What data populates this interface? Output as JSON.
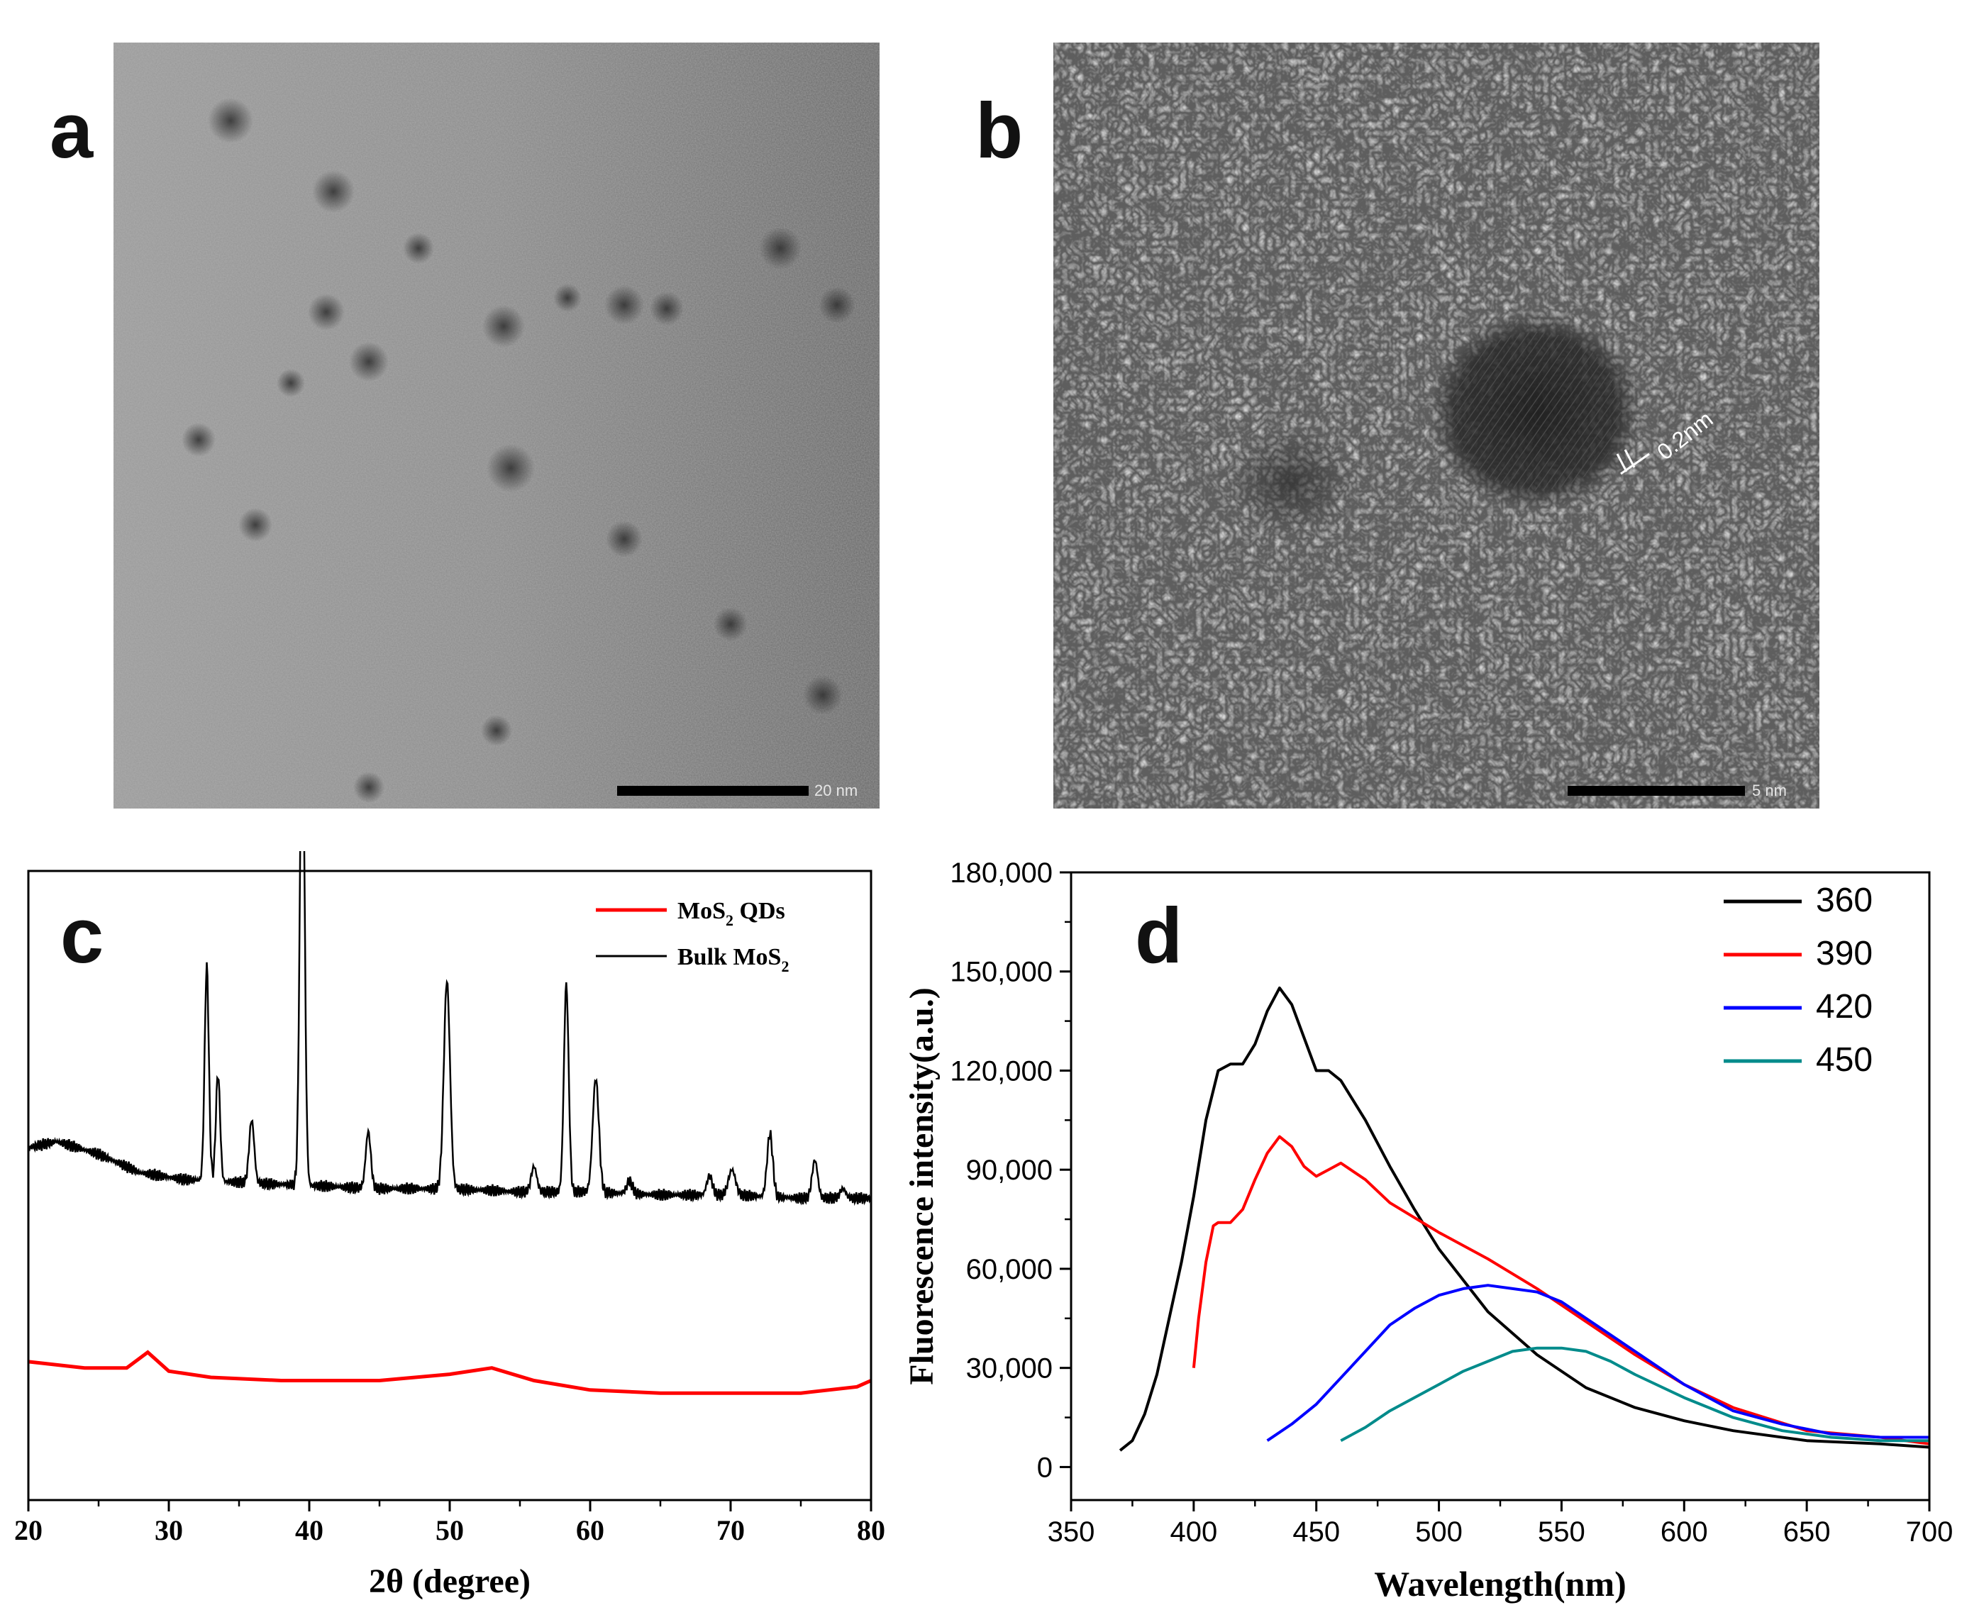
{
  "panels": {
    "a": {
      "letter": "a",
      "scale_label": "20 nm"
    },
    "b": {
      "letter": "b",
      "scale_label": "5 nm",
      "lattice_label": "0.2nm"
    },
    "c": {
      "letter": "c"
    },
    "d": {
      "letter": "d"
    }
  },
  "chart_data": [
    {
      "panel": "c",
      "type": "line",
      "xlabel": "2θ (degree)",
      "ylabel": "",
      "xlim": [
        20,
        80
      ],
      "xticks": [
        20,
        30,
        40,
        50,
        60,
        70,
        80
      ],
      "y_ticks_shown": false,
      "legend_position": "top-right",
      "series": [
        {
          "name": "MoS₂ QDs",
          "legend_main": "MoS",
          "legend_sub": "2",
          "legend_tail": " QDs",
          "color": "#ff0000",
          "x": [
            20,
            24,
            27,
            28.5,
            30,
            33,
            38,
            45,
            50,
            53,
            56,
            60,
            65,
            70,
            75,
            79,
            80
          ],
          "y": [
            0.22,
            0.21,
            0.21,
            0.235,
            0.205,
            0.195,
            0.19,
            0.19,
            0.2,
            0.21,
            0.19,
            0.175,
            0.17,
            0.17,
            0.17,
            0.18,
            0.19
          ]
        },
        {
          "name": "Bulk MoS₂",
          "legend_main": "Bulk MoS",
          "legend_sub": "2",
          "legend_tail": "",
          "color": "#000000",
          "baseline_x": [
            20,
            22,
            25,
            28,
            31,
            35,
            40,
            45,
            50,
            55,
            60,
            65,
            70,
            75,
            80
          ],
          "baseline_y": [
            0.56,
            0.57,
            0.55,
            0.52,
            0.51,
            0.505,
            0.5,
            0.495,
            0.495,
            0.49,
            0.49,
            0.485,
            0.485,
            0.48,
            0.48
          ],
          "peaks": [
            {
              "x": 32.7,
              "h": 0.34,
              "w": 0.15
            },
            {
              "x": 33.5,
              "h": 0.17,
              "w": 0.15
            },
            {
              "x": 35.9,
              "h": 0.1,
              "w": 0.18
            },
            {
              "x": 39.5,
              "h": 0.76,
              "w": 0.17
            },
            {
              "x": 44.2,
              "h": 0.09,
              "w": 0.18
            },
            {
              "x": 49.8,
              "h": 0.33,
              "w": 0.22
            },
            {
              "x": 56.0,
              "h": 0.04,
              "w": 0.2
            },
            {
              "x": 58.3,
              "h": 0.33,
              "w": 0.17
            },
            {
              "x": 60.4,
              "h": 0.18,
              "w": 0.22
            },
            {
              "x": 62.8,
              "h": 0.02,
              "w": 0.2
            },
            {
              "x": 68.5,
              "h": 0.03,
              "w": 0.2
            },
            {
              "x": 70.1,
              "h": 0.04,
              "w": 0.25
            },
            {
              "x": 72.8,
              "h": 0.1,
              "w": 0.2
            },
            {
              "x": 76.0,
              "h": 0.06,
              "w": 0.2
            },
            {
              "x": 78.0,
              "h": 0.015,
              "w": 0.2
            }
          ]
        }
      ]
    },
    {
      "panel": "d",
      "type": "line",
      "xlabel": "Wavelength(nm)",
      "ylabel": "Fluorescence intensity(a.u.)",
      "xlim": [
        350,
        700
      ],
      "ylim": [
        -10000,
        180000
      ],
      "xticks": [
        350,
        400,
        450,
        500,
        550,
        600,
        650,
        700
      ],
      "yticks": [
        0,
        30000,
        60000,
        90000,
        120000,
        150000,
        180000
      ],
      "ytick_labels": [
        "0",
        "30,000",
        "60,000",
        "90,000",
        "120,000",
        "150,000",
        "180,000"
      ],
      "legend_position": "top-right",
      "series": [
        {
          "name": "360",
          "color": "#000000",
          "x": [
            370,
            375,
            380,
            385,
            390,
            395,
            400,
            405,
            410,
            415,
            420,
            425,
            430,
            435,
            440,
            445,
            450,
            455,
            460,
            470,
            480,
            490,
            500,
            520,
            540,
            560,
            580,
            600,
            620,
            650,
            680,
            700
          ],
          "y": [
            5000,
            8000,
            16000,
            28000,
            45000,
            62000,
            82000,
            105000,
            120000,
            122000,
            122000,
            128000,
            138000,
            145000,
            140000,
            130000,
            120000,
            120000,
            117000,
            105000,
            91000,
            78000,
            66000,
            47000,
            34000,
            24000,
            18000,
            14000,
            11000,
            8000,
            7000,
            6000
          ]
        },
        {
          "name": "390",
          "color": "#ff0000",
          "x": [
            400,
            402,
            405,
            408,
            410,
            415,
            420,
            425,
            430,
            435,
            440,
            445,
            450,
            455,
            460,
            470,
            480,
            500,
            520,
            540,
            560,
            580,
            600,
            620,
            650,
            680,
            700
          ],
          "y": [
            30000,
            45000,
            62000,
            73000,
            74000,
            74000,
            78000,
            87000,
            95000,
            100000,
            97000,
            91000,
            88000,
            90000,
            92000,
            87000,
            80000,
            71000,
            63000,
            54000,
            44000,
            34000,
            25000,
            18000,
            11000,
            9000,
            7000
          ]
        },
        {
          "name": "420",
          "color": "#0000ff",
          "x": [
            430,
            440,
            450,
            460,
            470,
            480,
            490,
            500,
            510,
            520,
            530,
            540,
            550,
            560,
            580,
            600,
            620,
            640,
            660,
            680,
            700
          ],
          "y": [
            8000,
            13000,
            19000,
            27000,
            35000,
            43000,
            48000,
            52000,
            54000,
            55000,
            54000,
            53000,
            50000,
            45000,
            35000,
            25000,
            17000,
            13000,
            10000,
            9000,
            9000
          ]
        },
        {
          "name": "450",
          "color": "#008b8b",
          "x": [
            460,
            470,
            480,
            490,
            500,
            510,
            520,
            530,
            540,
            550,
            560,
            570,
            580,
            600,
            620,
            640,
            660,
            680,
            700
          ],
          "y": [
            8000,
            12000,
            17000,
            21000,
            25000,
            29000,
            32000,
            35000,
            36000,
            36000,
            35000,
            32000,
            28000,
            21000,
            15000,
            11000,
            9000,
            8000,
            8000
          ]
        }
      ]
    }
  ]
}
